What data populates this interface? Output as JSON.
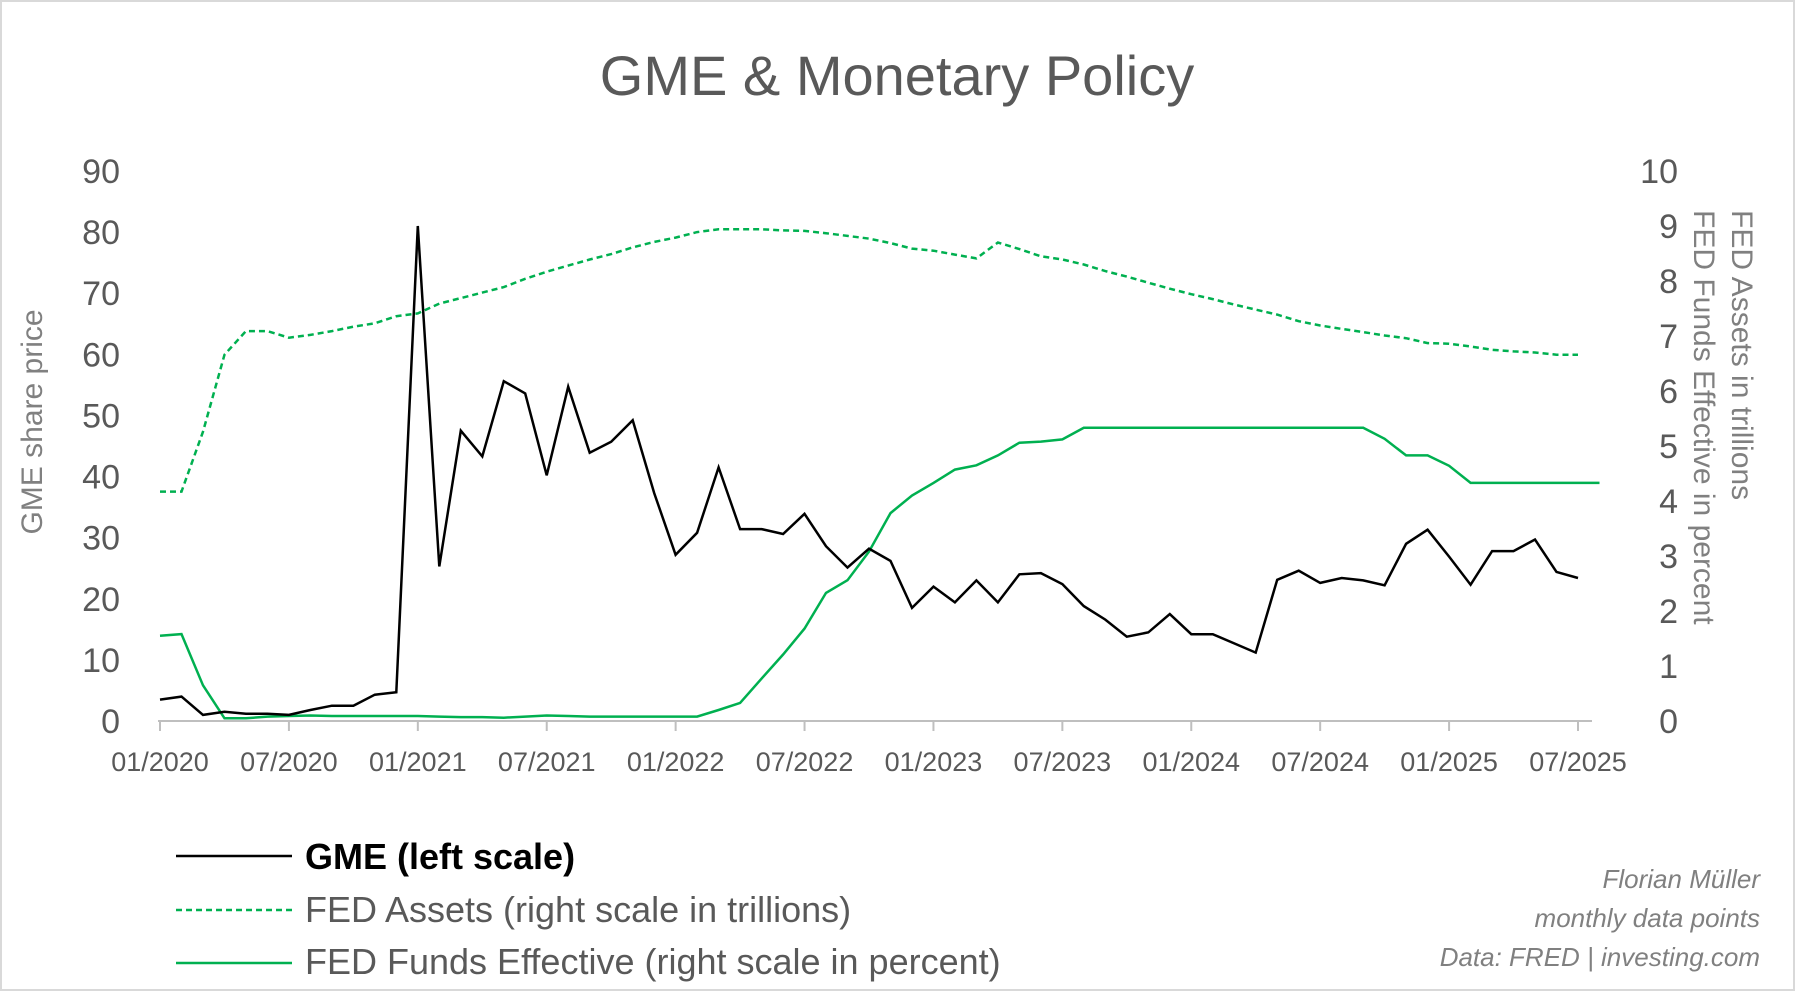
{
  "chart_data": {
    "type": "line",
    "title": "GME & Monetary Policy",
    "ylabel_left": "GME share price",
    "ylabel_right": "FED Assets in trillions FED Funds Effective in percent",
    "ylabel_right_lines": [
      "FED Assets in trillions",
      "FED Funds Effective in percent"
    ],
    "y_left_range": [
      0,
      90
    ],
    "y_left_ticks": [
      "0",
      "10",
      "20",
      "30",
      "40",
      "50",
      "60",
      "70",
      "80",
      "90"
    ],
    "y_right_range": [
      0,
      10
    ],
    "y_right_ticks": [
      "0",
      "1",
      "2",
      "3",
      "4",
      "5",
      "6",
      "7",
      "8",
      "9",
      "10"
    ],
    "x_ticks": [
      "01/2020",
      "07/2020",
      "01/2021",
      "07/2021",
      "01/2022",
      "07/2022",
      "01/2023",
      "07/2023",
      "01/2024",
      "07/2024",
      "01/2025",
      "07/2025"
    ],
    "x_start": "01/2020",
    "grid": false,
    "legend_position": "bottom-left",
    "series": [
      {
        "name": "GME (left scale)",
        "axis": "left",
        "color": "#000000",
        "style": "solid",
        "values": [
          3.5,
          4.0,
          1.0,
          1.5,
          1.2,
          1.2,
          1.0,
          1.8,
          2.5,
          2.5,
          4.3,
          4.7,
          81.0,
          25.3,
          47.5,
          43.3,
          55.6,
          53.6,
          40.2,
          54.7,
          43.9,
          45.7,
          49.2,
          37.3,
          27.2,
          30.8,
          41.5,
          31.4,
          31.4,
          30.6,
          33.9,
          28.6,
          25.1,
          28.2,
          26.2,
          18.5,
          22.0,
          19.4,
          23.0,
          19.4,
          24.0,
          24.2,
          22.4,
          18.8,
          16.6,
          13.8,
          14.5,
          17.5,
          14.2,
          14.2,
          12.7,
          11.2,
          23.1,
          24.6,
          22.6,
          23.4,
          23.0,
          22.2,
          29.0,
          31.3,
          26.9,
          22.3,
          27.8,
          27.8,
          29.7,
          24.4,
          23.4
        ]
      },
      {
        "name": "FED Assets (right scale in trillions)",
        "axis": "right",
        "color": "#00b050",
        "style": "dashed",
        "values": [
          4.17,
          4.17,
          5.26,
          6.66,
          7.09,
          7.09,
          6.97,
          7.02,
          7.09,
          7.17,
          7.23,
          7.36,
          7.41,
          7.59,
          7.69,
          7.79,
          7.89,
          8.04,
          8.17,
          8.28,
          8.39,
          8.49,
          8.61,
          8.71,
          8.79,
          8.89,
          8.94,
          8.94,
          8.94,
          8.92,
          8.91,
          8.87,
          8.82,
          8.77,
          8.69,
          8.59,
          8.55,
          8.48,
          8.41,
          8.7,
          8.58,
          8.45,
          8.39,
          8.3,
          8.18,
          8.08,
          7.97,
          7.86,
          7.76,
          7.67,
          7.57,
          7.48,
          7.39,
          7.27,
          7.19,
          7.13,
          7.07,
          7.01,
          6.96,
          6.87,
          6.86,
          6.81,
          6.75,
          6.72,
          6.7,
          6.66,
          6.66
        ]
      },
      {
        "name": "FED Funds Effective (right scale in percent)",
        "axis": "right",
        "color": "#00b050",
        "style": "solid",
        "values": [
          1.55,
          1.58,
          0.65,
          0.05,
          0.05,
          0.08,
          0.09,
          0.1,
          0.09,
          0.09,
          0.09,
          0.09,
          0.09,
          0.08,
          0.07,
          0.07,
          0.06,
          0.08,
          0.1,
          0.09,
          0.08,
          0.08,
          0.08,
          0.08,
          0.08,
          0.08,
          0.2,
          0.33,
          0.77,
          1.21,
          1.68,
          2.33,
          2.56,
          3.08,
          3.78,
          4.1,
          4.33,
          4.57,
          4.65,
          4.83,
          5.06,
          5.08,
          5.12,
          5.33,
          5.33,
          5.33,
          5.33,
          5.33,
          5.33,
          5.33,
          5.33,
          5.33,
          5.33,
          5.33,
          5.33,
          5.33,
          5.33,
          5.13,
          4.83,
          4.83,
          4.64,
          4.33,
          4.33,
          4.33,
          4.33,
          4.33,
          4.33,
          4.33
        ]
      }
    ]
  },
  "legend": [
    {
      "label": "GME (left scale)",
      "style": "solid",
      "color": "#000000",
      "bold": true
    },
    {
      "label": "FED Assets (right scale in trillions)",
      "style": "dashed",
      "color": "#00b050",
      "bold": false
    },
    {
      "label": "FED Funds Effective (right scale in percent)",
      "style": "solid",
      "color": "#00b050",
      "bold": false
    }
  ],
  "credits": [
    "Florian Müller",
    "monthly data points",
    "Data: FRED | investing.com"
  ]
}
